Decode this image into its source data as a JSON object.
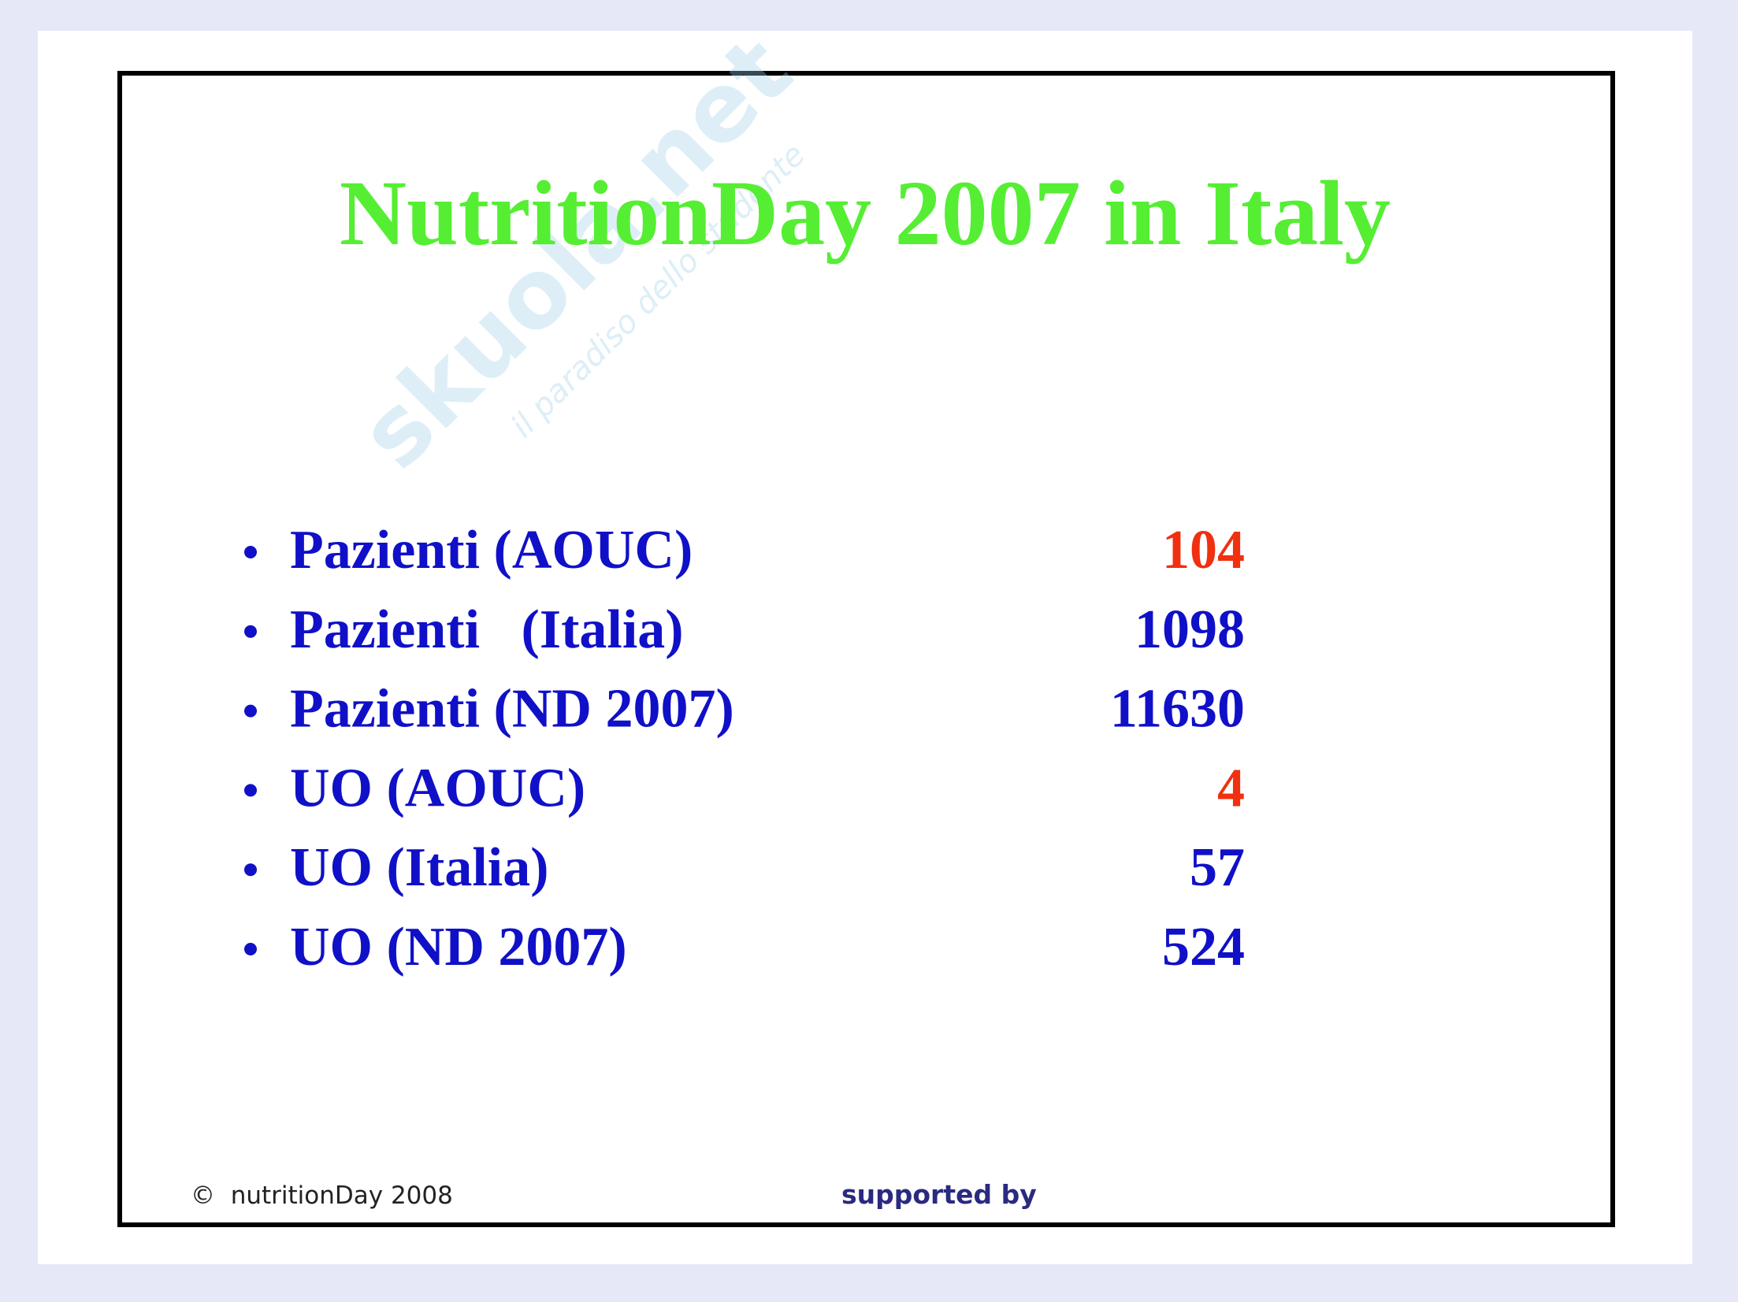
{
  "slide": {
    "title": "NutritionDay 2007 in Italy",
    "watermark": {
      "brand": "skuola.net",
      "tagline": "il paradiso dello studente"
    },
    "items": [
      {
        "label": "Pazienti (AOUC)",
        "value": 104,
        "color": "#f03010"
      },
      {
        "label": "Pazienti   (Italia)",
        "value": 1098,
        "color": "#1010c8"
      },
      {
        "label": "Pazienti (ND 2007)",
        "value": 11630,
        "color": "#1010c8"
      },
      {
        "label": "UO (AOUC)",
        "value": 4,
        "color": "#f03010"
      },
      {
        "label": "UO (Italia)",
        "value": 57,
        "color": "#1010c8"
      },
      {
        "label": "UO (ND 2007)",
        "value": 524,
        "color": "#1010c8"
      }
    ],
    "footer": {
      "copyright": "©  nutritionDay 2008",
      "supported": "supported by"
    }
  }
}
